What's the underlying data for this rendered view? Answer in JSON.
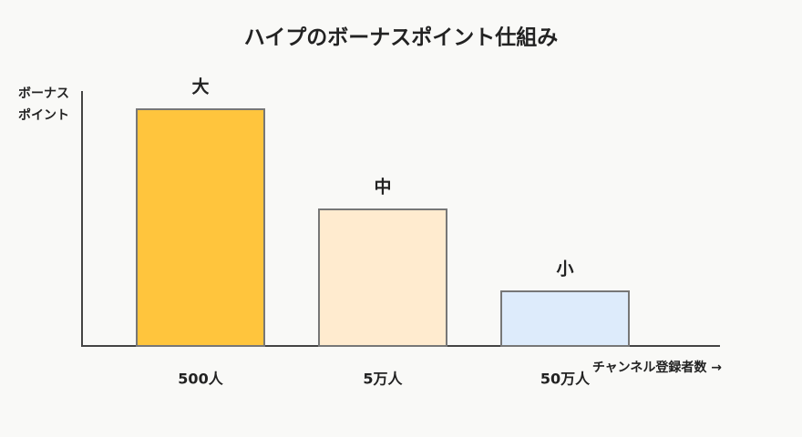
{
  "chart_data": {
    "type": "bar",
    "title": "ハイプのボーナスポイント仕組み",
    "ylabel": [
      "ボーナス",
      "ポイント"
    ],
    "xlabel": "チャンネル登録者数 →",
    "categories": [
      "500人",
      "5万人",
      "50万人"
    ],
    "values": [
      260,
      150,
      60
    ],
    "value_labels": [
      "大",
      "中",
      "小"
    ],
    "colors": [
      "#ffc53d",
      "#ffebcf",
      "#ddebfb"
    ],
    "ylim": [
      0,
      280
    ]
  }
}
